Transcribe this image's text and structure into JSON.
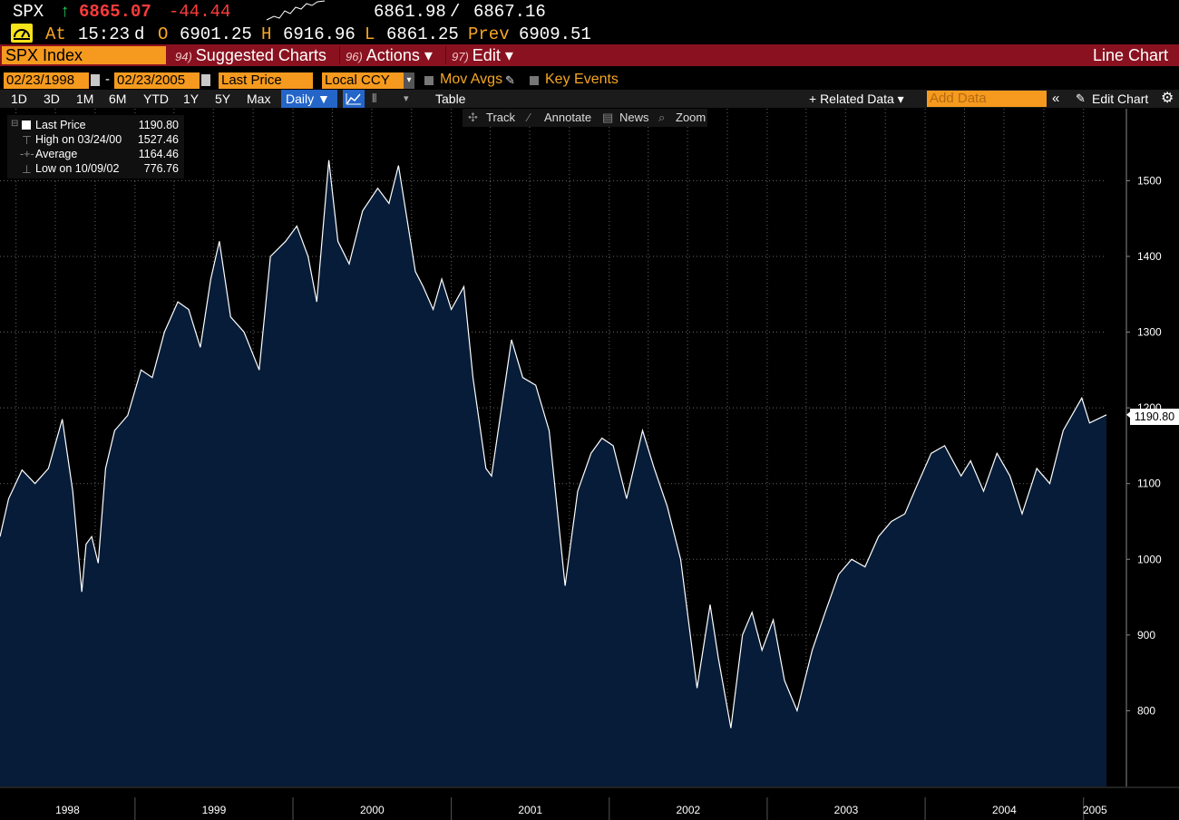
{
  "header": {
    "ticker": "SPX",
    "up_arrow": "↑",
    "last": "6865.07",
    "change": "-44.44",
    "bid": "6861.98",
    "slash": "/",
    "ask": "6867.16",
    "at_label": "At",
    "time": "15:23",
    "d_label": "d",
    "open_label": "O",
    "open": "6901.25",
    "high_label": "H",
    "high": "6916.96",
    "low_label": "L",
    "low": "6861.25",
    "prev_label": "Prev",
    "prev": "6909.51"
  },
  "titlebar": {
    "security": "SPX Index",
    "menu": [
      {
        "num": "94)",
        "label": "Suggested Charts"
      },
      {
        "num": "96)",
        "label": "Actions ▾"
      },
      {
        "num": "97)",
        "label": "Edit ▾"
      }
    ],
    "chart_type": "Line Chart"
  },
  "settings": {
    "start_date": "02/23/1998",
    "dash": "-",
    "end_date": "02/23/2005",
    "field": "Last Price",
    "currency": "Local CCY",
    "mov_avgs": "Mov Avgs",
    "key_events": "Key Events"
  },
  "ranges": {
    "buttons": [
      "1D",
      "3D",
      "1M",
      "6M",
      "YTD",
      "1Y",
      "5Y",
      "Max"
    ],
    "frequency": "Daily ▼",
    "table": "Table",
    "related": "+ Related Data ▾",
    "add_data_placeholder": "Add Data",
    "edit_chart": "Edit Chart"
  },
  "chart_tools": {
    "track": "Track",
    "annotate": "Annotate",
    "news": "News",
    "zoom": "Zoom"
  },
  "legend": {
    "last_label": "Last Price",
    "last_value": "1190.80",
    "high_label": "High on 03/24/00",
    "high_value": "1527.46",
    "avg_label": "Average",
    "avg_value": "1164.46",
    "low_label": "Low on 10/09/02",
    "low_value": "776.76"
  },
  "current_label": "1190.80",
  "colors": {
    "area_fill": "#061c38",
    "line": "#ffffff",
    "accent_orange": "#f59a1e",
    "title_red": "#8a1220",
    "grid": "#6a6a6a"
  },
  "chart_data": {
    "type": "area",
    "title": "",
    "series": [
      {
        "name": "Last Price",
        "x": [
          "1998-02-23",
          "1998-03-15",
          "1998-04-15",
          "1998-05-15",
          "1998-06-15",
          "1998-07-17",
          "1998-08-10",
          "1998-08-31",
          "1998-09-10",
          "1998-09-23",
          "1998-10-08",
          "1998-10-25",
          "1998-11-15",
          "1998-12-15",
          "1999-01-15",
          "1999-02-10",
          "1999-03-10",
          "1999-04-10",
          "1999-05-05",
          "1999-06-01",
          "1999-06-25",
          "1999-07-15",
          "1999-08-10",
          "1999-09-10",
          "1999-10-15",
          "1999-11-10",
          "1999-12-15",
          "2000-01-10",
          "2000-02-05",
          "2000-02-25",
          "2000-03-24",
          "2000-04-14",
          "2000-05-10",
          "2000-06-10",
          "2000-07-15",
          "2000-08-10",
          "2000-09-01",
          "2000-10-10",
          "2000-10-28",
          "2000-11-20",
          "2000-12-10",
          "2001-01-01",
          "2001-01-30",
          "2001-02-20",
          "2001-03-22",
          "2001-04-04",
          "2001-05-20",
          "2001-06-15",
          "2001-07-15",
          "2001-08-15",
          "2001-09-21",
          "2001-10-20",
          "2001-11-20",
          "2001-12-15",
          "2002-01-10",
          "2002-02-10",
          "2002-03-19",
          "2002-04-15",
          "2002-05-15",
          "2002-06-15",
          "2002-07-23",
          "2002-08-22",
          "2002-09-10",
          "2002-10-09",
          "2002-11-05",
          "2002-11-27",
          "2002-12-20",
          "2003-01-15",
          "2003-02-10",
          "2003-03-11",
          "2003-04-15",
          "2003-05-15",
          "2003-06-15",
          "2003-07-15",
          "2003-08-15",
          "2003-09-15",
          "2003-10-15",
          "2003-11-15",
          "2003-12-15",
          "2004-01-15",
          "2004-02-15",
          "2004-03-24",
          "2004-04-15",
          "2004-05-15",
          "2004-06-15",
          "2004-07-15",
          "2004-08-12",
          "2004-09-15",
          "2004-10-15",
          "2004-11-15",
          "2004-12-28",
          "2005-01-15",
          "2005-02-23"
        ],
        "values": [
          1030,
          1080,
          1118,
          1100,
          1120,
          1185,
          1090,
          957,
          1020,
          1030,
          995,
          1120,
          1170,
          1190,
          1250,
          1240,
          1300,
          1340,
          1330,
          1280,
          1370,
          1420,
          1320,
          1300,
          1250,
          1400,
          1420,
          1440,
          1400,
          1340,
          1527,
          1420,
          1390,
          1460,
          1490,
          1470,
          1520,
          1380,
          1360,
          1330,
          1370,
          1330,
          1360,
          1240,
          1120,
          1110,
          1290,
          1240,
          1230,
          1170,
          965,
          1090,
          1140,
          1160,
          1150,
          1080,
          1170,
          1120,
          1070,
          1000,
          830,
          940,
          870,
          777,
          900,
          930,
          880,
          920,
          840,
          800,
          880,
          930,
          980,
          1000,
          990,
          1030,
          1050,
          1060,
          1100,
          1140,
          1150,
          1110,
          1130,
          1090,
          1140,
          1110,
          1060,
          1120,
          1100,
          1170,
          1213,
          1180,
          1190.8
        ]
      }
    ],
    "x_tick_labels": [
      "1998",
      "1999",
      "2000",
      "2001",
      "2002",
      "2003",
      "2004",
      "2005"
    ],
    "y_tick_labels": [
      "800",
      "900",
      "1000",
      "1100",
      "1200",
      "1300",
      "1400",
      "1500"
    ],
    "ylim": [
      700,
      1595
    ],
    "xlim": [
      "1998-02-23",
      "2005-02-23"
    ],
    "grid": true,
    "y_axis_side": "right"
  }
}
